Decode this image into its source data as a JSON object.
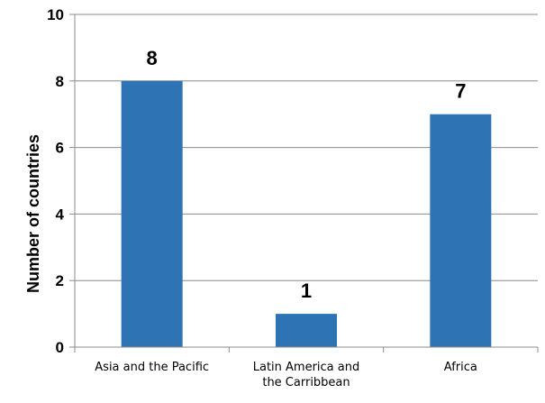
{
  "chart_data": {
    "type": "bar",
    "title": "",
    "xlabel": "",
    "ylabel": "Number of countries",
    "categories": [
      [
        "Asia and the Pacific"
      ],
      [
        "Latin America and",
        "the Carribbean"
      ],
      [
        "Africa"
      ]
    ],
    "values": [
      8,
      1,
      7
    ],
    "data_labels": [
      "8",
      "1",
      "7"
    ],
    "ylim": [
      0,
      10
    ],
    "yticks": [
      0,
      2,
      4,
      6,
      8,
      10
    ],
    "grid": true,
    "legend": "none",
    "bar_color": "#2e74b5"
  }
}
